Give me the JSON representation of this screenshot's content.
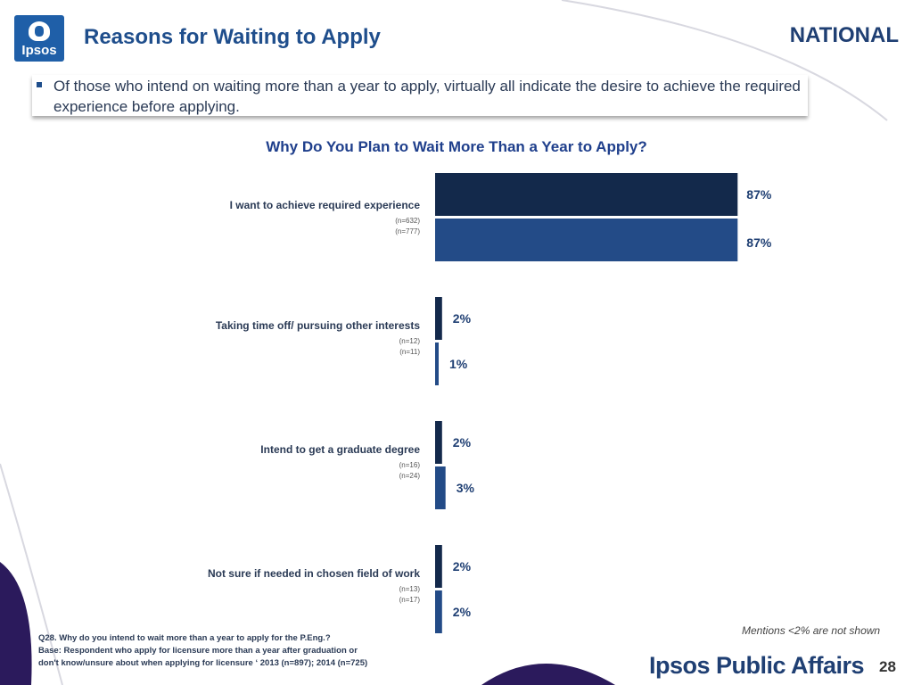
{
  "header": {
    "logo_text": "Ipsos",
    "title": "Reasons for Waiting to Apply",
    "region": "NATIONAL"
  },
  "summary": "Of those who intend on waiting more than a year to apply, virtually all indicate the desire to achieve the required experience before applying.",
  "colors": {
    "accent": "#1f4e8c",
    "series_2013": "#13294b",
    "series_2014": "#234b87",
    "deco_purple": "#2b1a5c"
  },
  "chart_data": {
    "type": "bar",
    "orientation": "horizontal",
    "title": "Why Do You Plan to Wait  More Than a Year to Apply?",
    "categories": [
      "I want to achieve required experience",
      "Taking time off/ pursuing other interests",
      "Intend to get a graduate degree",
      "Not sure if needed in chosen field of work"
    ],
    "n_labels": [
      [
        "(n=632)",
        "(n=777)"
      ],
      [
        "(n=12)",
        "(n=11)"
      ],
      [
        "(n=16)",
        "(n=24)"
      ],
      [
        "(n=13)",
        "(n=17)"
      ]
    ],
    "series": [
      {
        "values": [
          87,
          2,
          2,
          2
        ],
        "labels": [
          "87%",
          "2%",
          "2%",
          "2%"
        ]
      },
      {
        "values": [
          87,
          1,
          3,
          2
        ],
        "labels": [
          "87%",
          "1%",
          "3%",
          "2%"
        ]
      }
    ],
    "xlim": [
      0,
      100
    ],
    "grid": false
  },
  "mentions_note": "Mentions <2% are not shown",
  "footnote": [
    "Q28. Why do you intend to wait more than a year to apply for the P.Eng.?",
    "Base: Respondent who apply for licensure more than a year after graduation or",
    "don't know/unsure about when applying for licensure ‘ 2013 (n=897); 2014 (n=725)"
  ],
  "footer": {
    "brand": "Ipsos Public Affairs",
    "page_number": "28"
  }
}
